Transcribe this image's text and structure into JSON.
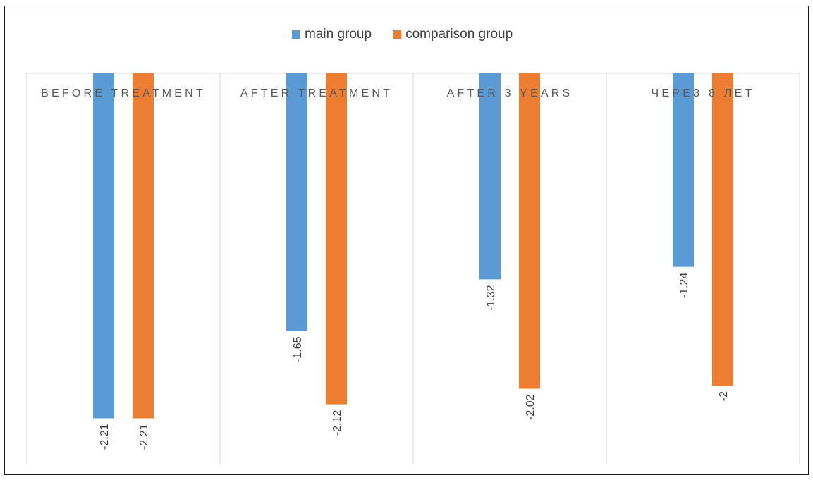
{
  "chart_data": {
    "type": "bar",
    "categories": [
      "BEFORE TREATMENT",
      "AFTER TREATMENT",
      "AFTER 3 YEARS",
      "ЧЕРЕЗ 8 ЛЕТ"
    ],
    "series": [
      {
        "name": "main group",
        "values": [
          -2.21,
          -1.65,
          -1.32,
          -1.24
        ],
        "data_labels": [
          "-2.21",
          "-1.65",
          "-1.32",
          "-1.24"
        ],
        "color": "#5B9BD5"
      },
      {
        "name": "comparison group",
        "values": [
          -2.21,
          -2.12,
          -2.02,
          -2.0
        ],
        "data_labels": [
          "-2.21",
          "-2.12",
          "-2.02",
          "-2"
        ],
        "color": "#ED7D31"
      }
    ],
    "ylim": [
      -2.5,
      0
    ],
    "grid": true,
    "legend_position": "top-center",
    "data_labels": true,
    "title": "",
    "xlabel": "",
    "ylabel": ""
  }
}
